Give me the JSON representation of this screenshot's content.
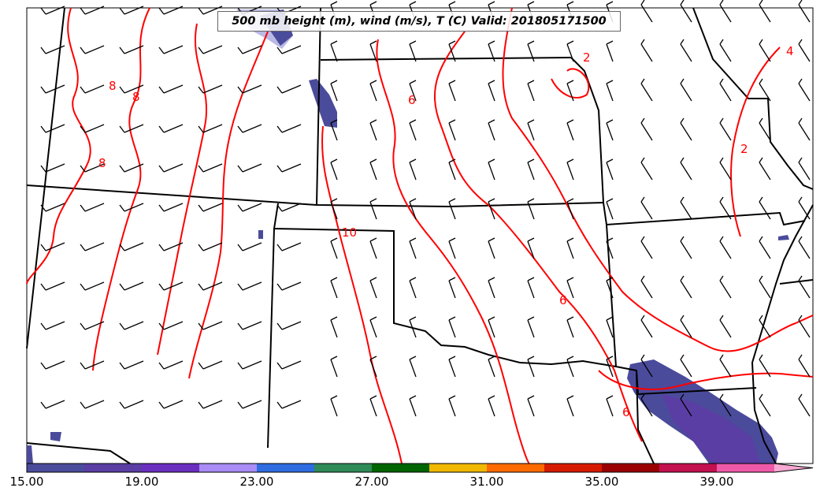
{
  "title": "500 mb height (m), wind (m/s), T (C) Valid: 201805171500",
  "contour_labels": [
    "8",
    "8",
    "8",
    "6",
    "10",
    "2",
    "6",
    "6",
    "4",
    "2"
  ],
  "colorbar": {
    "tick_labels": [
      "15.00",
      "19.00",
      "23.00",
      "27.00",
      "31.00",
      "35.00",
      "39.00"
    ],
    "colors": [
      "#4b4b9c",
      "#5a3ea3",
      "#6b2fc0",
      "#a98cf5",
      "#2f6ce0",
      "#2e8b57",
      "#006400",
      "#f0b800",
      "#ff6a00",
      "#d61a00",
      "#9b0000",
      "#c3104f",
      "#ee5aa8",
      "#f7a8d2"
    ]
  },
  "colors": {
    "temperature_contour": "#ff0000",
    "state_borders": "#000000",
    "wind_barbs": "#000000"
  }
}
